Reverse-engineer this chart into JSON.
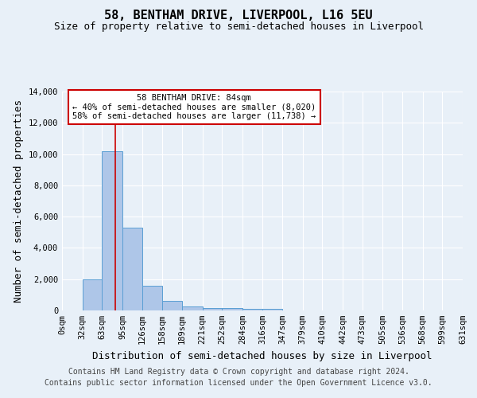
{
  "title": "58, BENTHAM DRIVE, LIVERPOOL, L16 5EU",
  "subtitle": "Size of property relative to semi-detached houses in Liverpool",
  "xlabel": "Distribution of semi-detached houses by size in Liverpool",
  "ylabel": "Number of semi-detached properties",
  "footnote1": "Contains HM Land Registry data © Crown copyright and database right 2024.",
  "footnote2": "Contains public sector information licensed under the Open Government Licence v3.0.",
  "annotation_title": "58 BENTHAM DRIVE: 84sqm",
  "annotation_line1": "← 40% of semi-detached houses are smaller (8,020)",
  "annotation_line2": "58% of semi-detached houses are larger (11,738) →",
  "bin_edges": [
    0,
    32,
    63,
    95,
    126,
    158,
    189,
    221,
    252,
    284,
    316,
    347,
    379,
    410,
    442,
    473,
    505,
    536,
    568,
    599,
    631
  ],
  "bin_counts": [
    0,
    2000,
    10200,
    5300,
    1600,
    600,
    280,
    170,
    130,
    110,
    120,
    0,
    0,
    0,
    0,
    0,
    0,
    0,
    0,
    0
  ],
  "bar_color": "#aec6e8",
  "bar_edge_color": "#5a9fd4",
  "vline_color": "#cc0000",
  "vline_x": 84,
  "annotation_box_color": "#ffffff",
  "annotation_box_edgecolor": "#cc0000",
  "ylim": [
    0,
    14000
  ],
  "yticks": [
    0,
    2000,
    4000,
    6000,
    8000,
    10000,
    12000,
    14000
  ],
  "background_color": "#e8f0f8",
  "grid_color": "#ffffff",
  "title_fontsize": 11,
  "subtitle_fontsize": 9,
  "axis_label_fontsize": 9,
  "tick_fontsize": 7.5,
  "footnote_fontsize": 7
}
